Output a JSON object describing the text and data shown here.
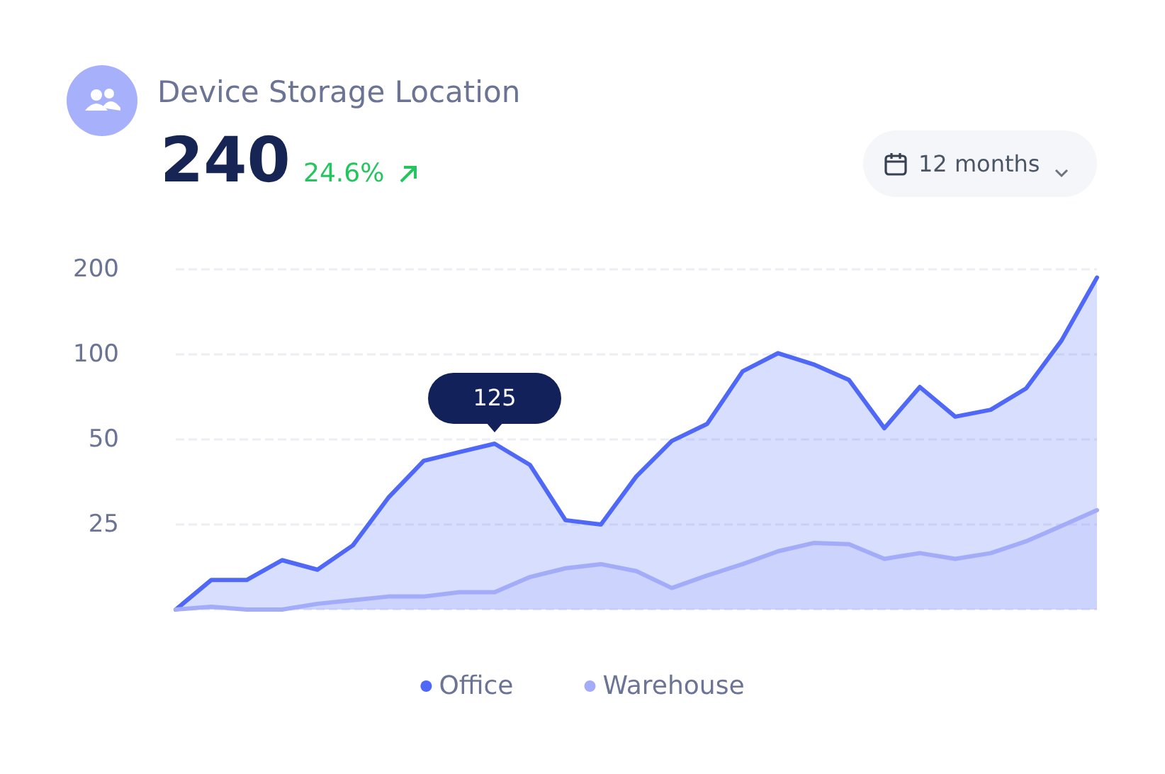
{
  "chart_data": {
    "type": "area",
    "title": "Device Storage Location",
    "annotations": [
      "240",
      "24.6%",
      "12 months",
      {
        "text": "125",
        "y": 48.3
      }
    ],
    "categories": [
      null,
      null,
      null,
      null,
      null,
      null,
      null,
      null,
      null,
      null,
      null,
      null,
      null,
      null,
      null,
      null,
      null,
      null,
      null,
      null,
      null,
      null,
      null,
      null,
      null,
      null,
      null
    ],
    "series": [
      {
        "name": "Office",
        "color": "#4f68f7",
        "values": [
          12.5,
          15.9,
          15.9,
          18.7,
          17.3,
          21.1,
          31.1,
          42.0,
          45.1,
          48.3,
          40.6,
          25.9,
          25,
          37.0,
          49.4,
          56.8,
          87.1,
          101,
          92.2,
          81.2,
          54.8,
          76.7,
          60.2,
          63.7,
          75.8,
          112,
          187
        ]
      },
      {
        "name": "Warehouse",
        "color": "#a3acf9",
        "values": [
          12.5,
          12.8,
          12.5,
          12.5,
          13.1,
          13.5,
          13.9,
          13.9,
          14.4,
          14.4,
          16.3,
          17.5,
          18.1,
          17.1,
          14.9,
          16.5,
          18.1,
          20.1,
          21.5,
          21.3,
          18.9,
          19.8,
          18.9,
          19.8,
          21.8,
          24.7,
          28.1
        ]
      }
    ],
    "log": true,
    "ylim": [
      12.5,
      200
    ],
    "yticks": [
      {
        "value": 12.5,
        "label": null
      },
      25,
      50,
      100,
      200
    ],
    "grid": "y",
    "legend": "bottom",
    "marker": "none",
    "line_style": "solid"
  }
}
